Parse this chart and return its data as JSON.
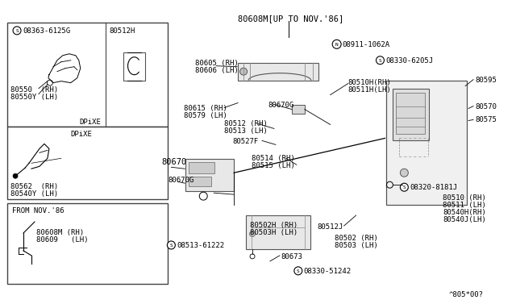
{
  "bg_color": "#ffffff",
  "diagram_color": "#000000",
  "border_color": "#555555",
  "font_size_small": 6.5,
  "font_size_medium": 7.5,
  "labels": {
    "top_label": "80608M[UP TO NOV.'86]",
    "part_N": "08911-1062A",
    "part_S1": "08363-6125G",
    "part_S2": "08330-6205J",
    "part_S3": "08513-61222",
    "part_S4": "08330-51242",
    "part_S5": "08320-8181J",
    "p80512H": "80512H",
    "p80605": "80605 (RH)",
    "p80606": "80606 (LH)",
    "p80615": "80615 (RH)",
    "p80579": "80579 (LH)",
    "p80670G_1": "80670G",
    "p80512": "80512 (RH)",
    "p80513": "80513 (LH)",
    "p80527F": "80527F",
    "p80514": "80514 (RH)",
    "p80515": "80515 (LH)",
    "p80670": "80670",
    "p80670G_2": "80670G",
    "p80502H": "80502H (RH)",
    "p80503H": "80503H (LH)",
    "p80673": "80673",
    "p80510H": "80510H(RH)",
    "p80511H": "80511H(LH)",
    "p80595": "80595",
    "p80570": "80570",
    "p80575": "80575",
    "p80510": "80510 (RH)",
    "p80511": "80511 (LH)",
    "p80540H": "80540H(RH)",
    "p80540J": "80540J(LH)",
    "p80502": "80502 (RH)",
    "p80503": "80503 (LH)",
    "p80512J": "80512J",
    "p80550": "80550  (RH)",
    "p80550Y": "80550Y (LH)",
    "p80562": "80562  (RH)",
    "p80540Y": "80540Y (LH)",
    "p80608M": "80608M (RH)",
    "p80609": "80609   (LH)",
    "dpixe1": "DPiXE",
    "dpixe2": "DPiXE",
    "from_nov": "FROM NOV.'86",
    "diagram_ref": "^805*00?"
  }
}
